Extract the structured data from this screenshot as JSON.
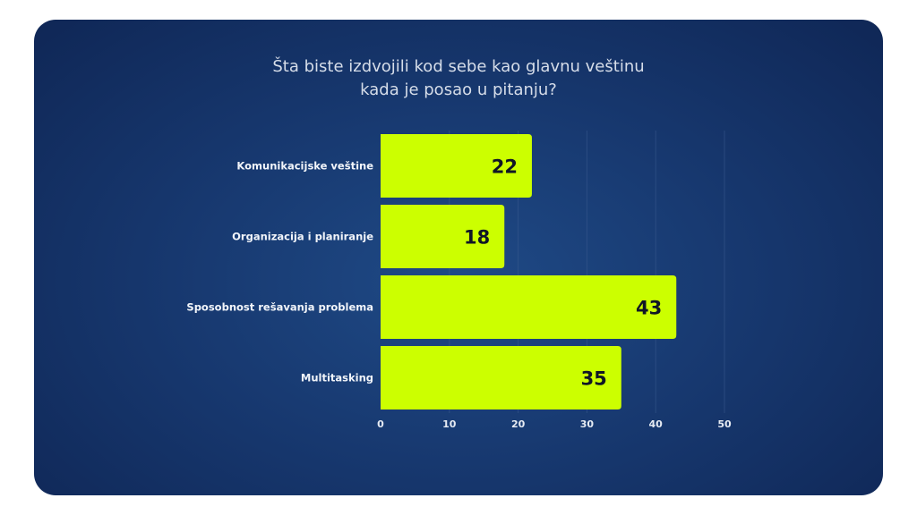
{
  "chart_data": {
    "type": "bar",
    "orientation": "horizontal",
    "title": "Šta biste izdvojili kod sebe kao glavnu veštinu\nkada je posao u pitanju?",
    "categories": [
      "Komunikacijske veštine",
      "Organizacija i planiranje",
      "Sposobnost rešavanja problema",
      "Multitasking"
    ],
    "values": [
      22,
      18,
      43,
      35
    ],
    "xlim": [
      0,
      50
    ],
    "xticks": [
      0,
      10,
      20,
      30,
      40,
      50
    ],
    "grid": true,
    "bar_color": "#ccff00",
    "background_color": "#17386f"
  }
}
